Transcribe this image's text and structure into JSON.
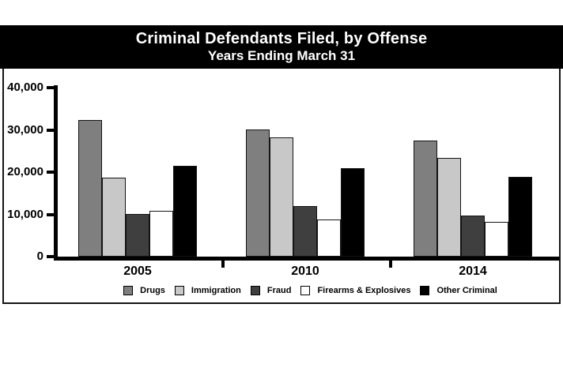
{
  "banner": {
    "title": "Criminal Defendants Filed, by Offense",
    "subtitle": "Years Ending March 31"
  },
  "chart_data": {
    "type": "bar",
    "title": "Criminal Defendants Filed, by Offense",
    "subtitle": "Years Ending March 31",
    "categories": [
      "2005",
      "2010",
      "2014"
    ],
    "series": [
      {
        "name": "Drugs",
        "color": "#7f7f7f",
        "values": [
          32300,
          30000,
          27500
        ]
      },
      {
        "name": "Immigration",
        "color": "#c8c8c8",
        "values": [
          18700,
          28300,
          23300
        ]
      },
      {
        "name": "Fraud",
        "color": "#3f3f3f",
        "values": [
          10000,
          12000,
          9700
        ]
      },
      {
        "name": "Firearms & Explosives",
        "color": "#ffffff",
        "values": [
          10900,
          8700,
          8300
        ]
      },
      {
        "name": "Other Criminal",
        "color": "#000000",
        "values": [
          21500,
          20900,
          18800
        ]
      }
    ],
    "ylim": [
      0,
      40000
    ],
    "y_ticks": [
      {
        "value": 0,
        "label": "0"
      },
      {
        "value": 10000,
        "label": "10,000"
      },
      {
        "value": 20000,
        "label": "20,000"
      },
      {
        "value": 30000,
        "label": "30,000"
      },
      {
        "value": 40000,
        "label": "40,000"
      }
    ],
    "grid": false,
    "legend_position": "bottom",
    "colors": {
      "banner_background": "#000000",
      "banner_text": "#ffffff",
      "axis": "#000000"
    }
  }
}
